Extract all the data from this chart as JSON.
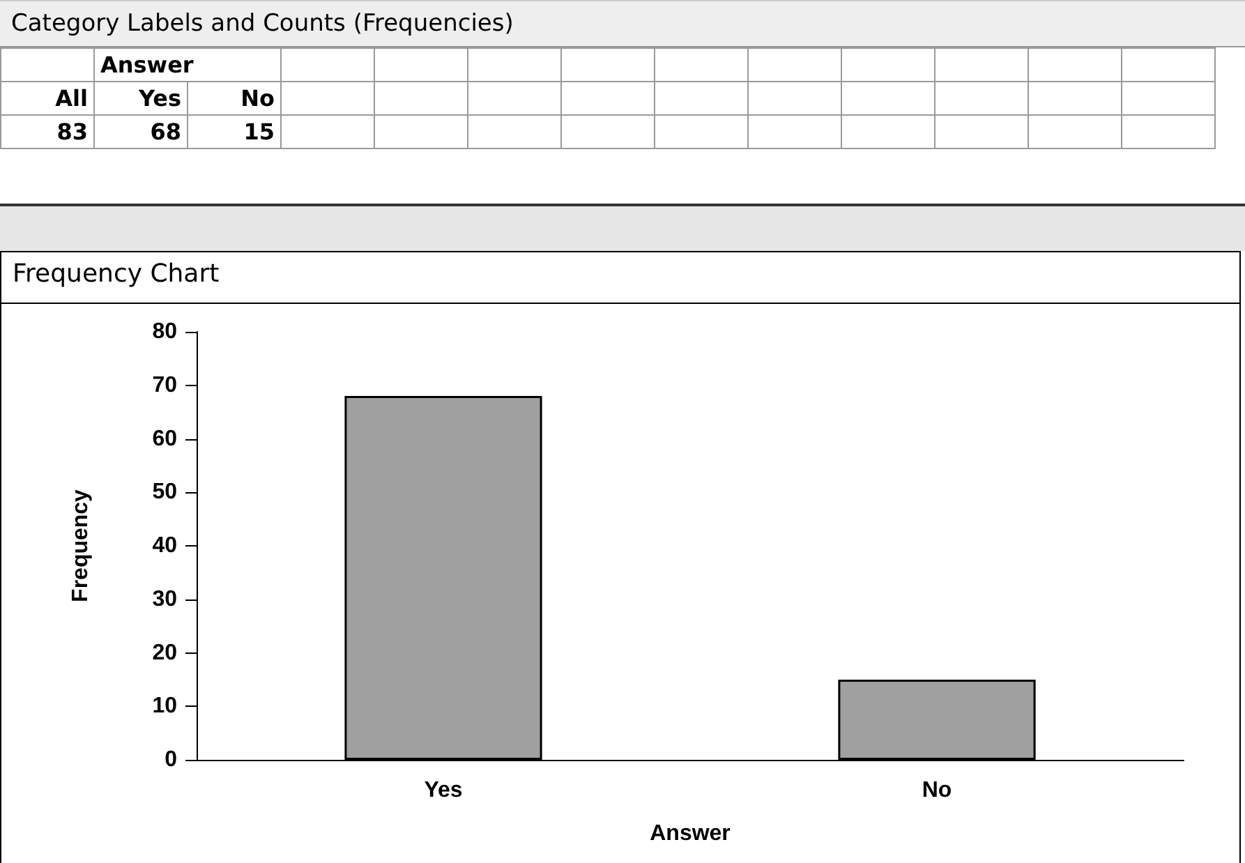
{
  "chart_data": {
    "type": "bar",
    "title": "Frequency Chart",
    "xlabel": "Answer",
    "ylabel": "Frequency",
    "categories": [
      "Yes",
      "No"
    ],
    "values": [
      68,
      15
    ],
    "color": "#a0a0a0",
    "ylim": [
      0,
      80
    ],
    "yticks": [
      0,
      10,
      20,
      30,
      40,
      50,
      60,
      70,
      80
    ],
    "grid": false,
    "annotations": [
      "Category Labels and Counts (Frequencies)",
      "All",
      "83",
      "68",
      "15"
    ]
  }
}
